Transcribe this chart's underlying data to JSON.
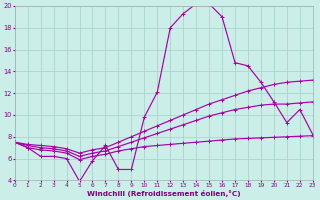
{
  "xlabel": "Windchill (Refroidissement éolien,°C)",
  "bg_color": "#cceee8",
  "grid_color": "#aad4cc",
  "line_color": "#aa00aa",
  "xlim": [
    0,
    23
  ],
  "ylim": [
    4,
    20
  ],
  "xticks": [
    0,
    1,
    2,
    3,
    4,
    5,
    6,
    7,
    8,
    9,
    10,
    11,
    12,
    13,
    14,
    15,
    16,
    17,
    18,
    19,
    20,
    21,
    22,
    23
  ],
  "yticks": [
    4,
    6,
    8,
    10,
    12,
    14,
    16,
    18,
    20
  ],
  "series": [
    {
      "x": [
        0,
        1,
        2,
        3,
        4,
        5,
        6,
        7,
        8,
        9,
        10,
        11,
        12,
        13,
        14,
        15,
        16,
        17,
        18,
        19,
        20,
        21,
        22,
        23
      ],
      "y": [
        7.5,
        7.0,
        6.2,
        6.2,
        6.0,
        3.9,
        5.8,
        7.2,
        5.0,
        5.0,
        9.8,
        12.1,
        18.0,
        19.3,
        20.2,
        20.2,
        19.0,
        14.8,
        14.5,
        13.0,
        11.2,
        9.3,
        10.5,
        8.2
      ]
    },
    {
      "x": [
        0,
        1,
        2,
        3,
        4,
        5,
        6,
        7,
        8,
        9,
        10,
        11,
        12,
        13,
        14,
        15,
        16,
        17,
        18,
        19,
        20,
        21,
        22,
        23
      ],
      "y": [
        7.5,
        7.3,
        7.2,
        7.1,
        6.9,
        6.5,
        6.8,
        7.0,
        7.5,
        8.0,
        8.5,
        9.0,
        9.5,
        10.0,
        10.5,
        11.0,
        11.4,
        11.8,
        12.2,
        12.5,
        12.8,
        13.0,
        13.1,
        13.2
      ]
    },
    {
      "x": [
        0,
        1,
        2,
        3,
        4,
        5,
        6,
        7,
        8,
        9,
        10,
        11,
        12,
        13,
        14,
        15,
        16,
        17,
        18,
        19,
        20,
        21,
        22,
        23
      ],
      "y": [
        7.5,
        7.2,
        7.0,
        6.9,
        6.7,
        6.2,
        6.5,
        6.7,
        7.1,
        7.5,
        7.9,
        8.3,
        8.7,
        9.1,
        9.5,
        9.9,
        10.2,
        10.5,
        10.7,
        10.9,
        11.0,
        11.0,
        11.1,
        11.2
      ]
    },
    {
      "x": [
        0,
        1,
        2,
        3,
        4,
        5,
        6,
        7,
        8,
        9,
        10,
        11,
        12,
        13,
        14,
        15,
        16,
        17,
        18,
        19,
        20,
        21,
        22,
        23
      ],
      "y": [
        7.5,
        7.0,
        6.8,
        6.7,
        6.5,
        5.9,
        6.2,
        6.4,
        6.7,
        6.9,
        7.1,
        7.2,
        7.3,
        7.4,
        7.5,
        7.6,
        7.7,
        7.8,
        7.85,
        7.9,
        7.95,
        8.0,
        8.05,
        8.1
      ]
    }
  ]
}
